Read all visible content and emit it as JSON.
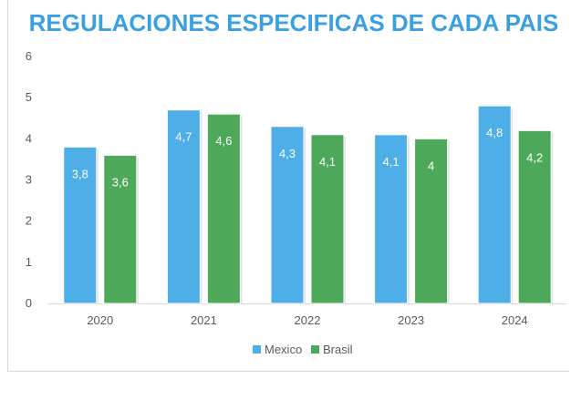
{
  "chart_data": {
    "type": "bar",
    "title": "REGULACIONES ESPECIFICAS DE CADA PAIS",
    "categories": [
      "2020",
      "2021",
      "2022",
      "2023",
      "2024"
    ],
    "series": [
      {
        "name": "Mexico",
        "values": [
          3.8,
          4.7,
          4.3,
          4.1,
          4.8
        ],
        "labels": [
          "3,8",
          "4,7",
          "4,3",
          "4,1",
          "4,8"
        ],
        "color": "#4eaee7"
      },
      {
        "name": "Brasil",
        "values": [
          3.6,
          4.6,
          4.1,
          4.0,
          4.2
        ],
        "labels": [
          "3,6",
          "4,6",
          "4,1",
          "4",
          "4,2"
        ],
        "color": "#4ea85a"
      }
    ],
    "yticks": [
      "0",
      "1",
      "2",
      "3",
      "4",
      "5",
      "6"
    ],
    "ylim": [
      0,
      6
    ],
    "grid": false,
    "legend": "bottom",
    "title_color": "#3aa0e0"
  }
}
